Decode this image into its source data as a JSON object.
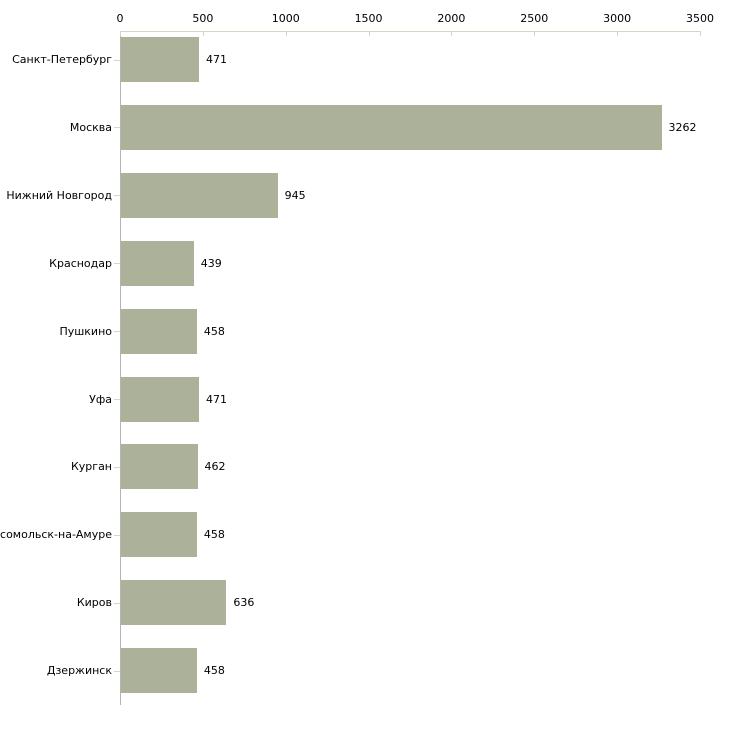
{
  "chart_data": {
    "type": "bar",
    "orientation": "horizontal",
    "categories": [
      "Санкт-Петербург",
      "Москва",
      "Нижний Новгород",
      "Краснодар",
      "Пушкино",
      "Уфа",
      "Курган",
      "Комсомольск-на-Амуре",
      "Киров",
      "Дзержинск"
    ],
    "values": [
      471,
      3262,
      945,
      439,
      458,
      471,
      462,
      458,
      636,
      458
    ],
    "value_labels": [
      "471",
      "3262",
      "945",
      "439",
      "458",
      "471",
      "462",
      "458",
      "636",
      "458"
    ],
    "xlim": [
      0,
      3500
    ],
    "x_ticks": [
      "0",
      "500",
      "1000",
      "1500",
      "2000",
      "2500",
      "3000",
      "3500"
    ],
    "x_axis_position": "top",
    "grid": false,
    "legend": false,
    "colors": {
      "bar": "#acb199",
      "axis_line": "#d6d6c4",
      "category_axis_line": "#b3b3b3",
      "text": "#000000",
      "background": "#ffffff"
    }
  }
}
